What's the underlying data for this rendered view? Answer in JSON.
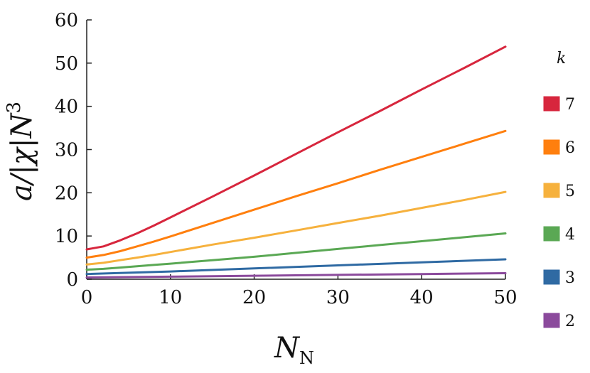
{
  "chart_data": {
    "type": "line",
    "xlabel": "N_N",
    "xlabel_main": "N",
    "xlabel_sub": "N",
    "ylabel": "a/|χ|N^3",
    "ylabel_main": "a/|χ|N",
    "ylabel_sup": "3",
    "xlim": [
      0,
      50
    ],
    "ylim": [
      0,
      60
    ],
    "xticks": [
      "0",
      "10",
      "20",
      "30",
      "40",
      "50"
    ],
    "yticks": [
      "0",
      "10",
      "20",
      "30",
      "40",
      "50",
      "60"
    ],
    "grid": false,
    "legend_title": "k",
    "legend_position": "right",
    "series": [
      {
        "name": "7",
        "color": "#d7263d",
        "x": [
          0,
          2,
          4,
          6,
          8,
          10,
          15,
          20,
          25,
          30,
          35,
          40,
          45,
          50
        ],
        "values": [
          6.9,
          7.6,
          9.0,
          10.6,
          12.4,
          14.3,
          19.1,
          24.0,
          29.0,
          34.0,
          38.9,
          43.9,
          48.8,
          53.8
        ]
      },
      {
        "name": "6",
        "color": "#ff7f0e",
        "x": [
          0,
          2,
          4,
          6,
          8,
          10,
          15,
          20,
          25,
          30,
          35,
          40,
          45,
          50
        ],
        "values": [
          5.0,
          5.6,
          6.5,
          7.6,
          8.7,
          9.9,
          13.0,
          16.1,
          19.2,
          22.2,
          25.3,
          28.3,
          31.3,
          34.3
        ]
      },
      {
        "name": "5",
        "color": "#f6b13d",
        "x": [
          0,
          2,
          4,
          6,
          8,
          10,
          15,
          20,
          25,
          30,
          35,
          40,
          45,
          50
        ],
        "values": [
          3.4,
          3.8,
          4.4,
          5.0,
          5.6,
          6.3,
          8.0,
          9.6,
          11.3,
          13.0,
          14.7,
          16.5,
          18.3,
          20.2
        ]
      },
      {
        "name": "4",
        "color": "#5aa854",
        "x": [
          0,
          2,
          4,
          6,
          8,
          10,
          15,
          20,
          25,
          30,
          35,
          40,
          45,
          50
        ],
        "values": [
          2.2,
          2.4,
          2.7,
          3.0,
          3.3,
          3.6,
          4.4,
          5.2,
          6.1,
          7.0,
          7.9,
          8.8,
          9.7,
          10.6
        ]
      },
      {
        "name": "3",
        "color": "#2f6aa3",
        "x": [
          0,
          10,
          20,
          30,
          40,
          50
        ],
        "values": [
          1.2,
          1.8,
          2.5,
          3.2,
          3.9,
          4.6
        ]
      },
      {
        "name": "2",
        "color": "#8b4a9c",
        "x": [
          0,
          10,
          20,
          30,
          40,
          50
        ],
        "values": [
          0.4,
          0.6,
          0.8,
          1.0,
          1.2,
          1.4
        ]
      }
    ]
  }
}
